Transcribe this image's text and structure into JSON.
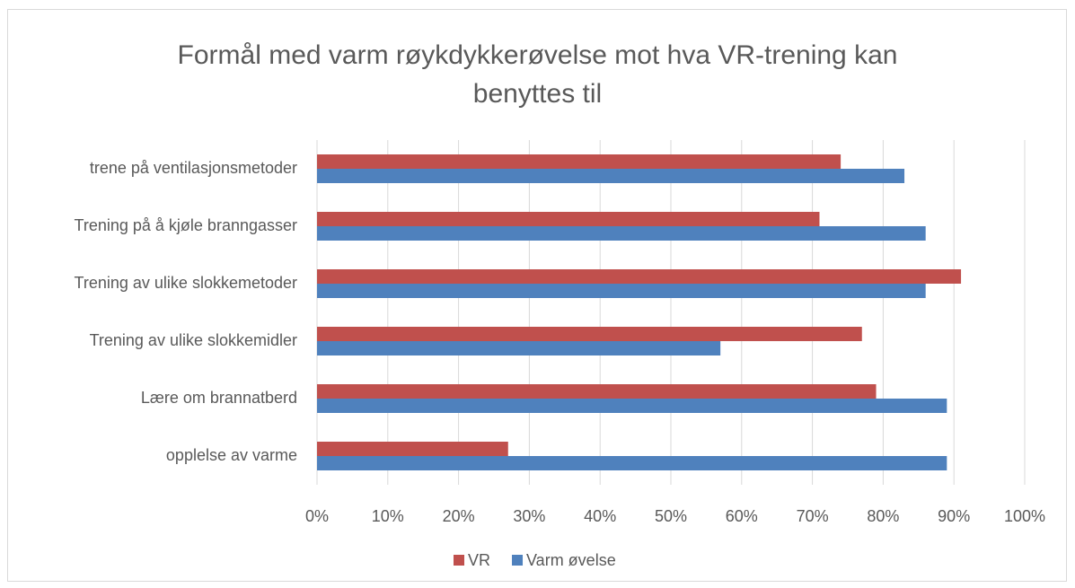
{
  "chart_data": {
    "type": "barh",
    "title": "Formål med varm røykdykkerøvelse mot hva VR-trening kan benyttes til",
    "categories": [
      "trene på ventilasjonsmetoder",
      "Trening på å kjøle branngasser",
      "Trening av ulike slokkemetoder",
      "Trening av ulike slokkemidler",
      "Lære om brannatberd",
      "opplelse av varme"
    ],
    "series": [
      {
        "name": "VR",
        "color": "#c0504d",
        "values": [
          74,
          71,
          91,
          77,
          79,
          27
        ]
      },
      {
        "name": "Varm øvelse",
        "color": "#4f81bd",
        "values": [
          83,
          86,
          86,
          57,
          89,
          89
        ]
      }
    ],
    "xlim": [
      0,
      100
    ],
    "xticks": [
      {
        "value": 0,
        "label": "0%"
      },
      {
        "value": 10,
        "label": "10%"
      },
      {
        "value": 20,
        "label": "20%"
      },
      {
        "value": 30,
        "label": "30%"
      },
      {
        "value": 40,
        "label": "40%"
      },
      {
        "value": 50,
        "label": "50%"
      },
      {
        "value": 60,
        "label": "60%"
      },
      {
        "value": 70,
        "label": "70%"
      },
      {
        "value": 80,
        "label": "80%"
      },
      {
        "value": 90,
        "label": "90%"
      },
      {
        "value": 100,
        "label": "100%"
      }
    ],
    "grid": true,
    "legend": "bottom"
  }
}
